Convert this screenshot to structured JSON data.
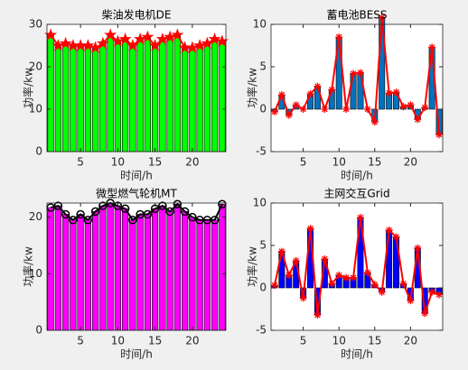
{
  "chart_data": [
    {
      "type": "bar",
      "title": "柴油发电机DE",
      "xlabel": "时间/h",
      "ylabel": "功率/kw",
      "x": [
        1,
        2,
        3,
        4,
        5,
        6,
        7,
        8,
        9,
        10,
        11,
        12,
        13,
        14,
        15,
        16,
        17,
        18,
        19,
        20,
        21,
        22,
        23,
        24
      ],
      "values": [
        27.5,
        25,
        25.5,
        25,
        25,
        25,
        24.5,
        25.5,
        27.5,
        26,
        26.5,
        25,
        26.5,
        27,
        25,
        26.5,
        27,
        27.5,
        24.5,
        24.5,
        25,
        25.5,
        26.5,
        26
      ],
      "color": "#00ff00",
      "line_color": "#ff0000",
      "marker": "pentagram",
      "xlim": [
        0.5,
        24.5
      ],
      "xticks": [
        5,
        10,
        15,
        20
      ],
      "ylim": [
        0,
        30
      ],
      "yticks": [
        0,
        10,
        20,
        30
      ]
    },
    {
      "type": "bar",
      "title": "蓄电池BESS",
      "xlabel": "时间/h",
      "ylabel": "功率/kw",
      "x": [
        1,
        2,
        3,
        4,
        5,
        6,
        7,
        8,
        9,
        10,
        11,
        12,
        13,
        14,
        15,
        16,
        17,
        18,
        19,
        20,
        21,
        22,
        23,
        24
      ],
      "values": [
        -0.3,
        1.7,
        -0.7,
        0.5,
        0,
        1.8,
        2.7,
        0,
        2.3,
        8.5,
        0,
        4.2,
        4.3,
        0,
        -1.5,
        10.8,
        1.9,
        2,
        0.3,
        0.5,
        -1.2,
        0.2,
        7.3,
        -3
      ],
      "color": "#0072bd",
      "line_color": "#ff0000",
      "marker": "asterisk",
      "xlim": [
        0.5,
        24.5
      ],
      "xticks": [
        5,
        10,
        15,
        20
      ],
      "ylim": [
        -5,
        10
      ],
      "yticks": [
        -5,
        0,
        5,
        10
      ]
    },
    {
      "type": "bar",
      "title": "微型燃气轮机MT",
      "xlabel": "时间/h",
      "ylabel": "功率/kw",
      "x": [
        1,
        2,
        3,
        4,
        5,
        6,
        7,
        8,
        9,
        10,
        11,
        12,
        13,
        14,
        15,
        16,
        17,
        18,
        19,
        20,
        21,
        22,
        23,
        24
      ],
      "values": [
        21.7,
        22,
        20.5,
        19.5,
        20.5,
        19.5,
        21,
        22,
        22.5,
        22,
        21.5,
        19.5,
        20.5,
        20.5,
        21.5,
        22,
        21,
        22.3,
        21,
        20,
        19.5,
        19.5,
        19.5,
        22.3
      ],
      "color": "#ff00ff",
      "line_color": "#000000",
      "marker": "circle",
      "xlim": [
        0.5,
        24.5
      ],
      "xticks": [
        5,
        10,
        15,
        20
      ],
      "ylim": [
        0,
        22.5
      ],
      "yticks": [
        0,
        10,
        20
      ]
    },
    {
      "type": "bar",
      "title": "主网交互Grid",
      "xlabel": "时间/h",
      "ylabel": "功率/kw",
      "x": [
        1,
        2,
        3,
        4,
        5,
        6,
        7,
        8,
        9,
        10,
        11,
        12,
        13,
        14,
        15,
        16,
        17,
        18,
        19,
        20,
        21,
        22,
        23,
        24
      ],
      "values": [
        0.3,
        4.3,
        1.5,
        3.2,
        -1.2,
        7,
        -3.2,
        3.4,
        0.5,
        1.5,
        1.2,
        1.2,
        8.3,
        1.8,
        0.4,
        -0.5,
        6.8,
        6,
        0.5,
        -1.5,
        4.7,
        -3,
        -0.5,
        -0.8
      ],
      "color": "#0000ff",
      "line_color": "#ff0000",
      "marker": "asterisk",
      "xlim": [
        0.5,
        24.5
      ],
      "xticks": [
        5,
        10,
        15,
        20
      ],
      "ylim": [
        -5,
        10
      ],
      "yticks": [
        -5,
        0,
        5,
        10
      ]
    }
  ]
}
